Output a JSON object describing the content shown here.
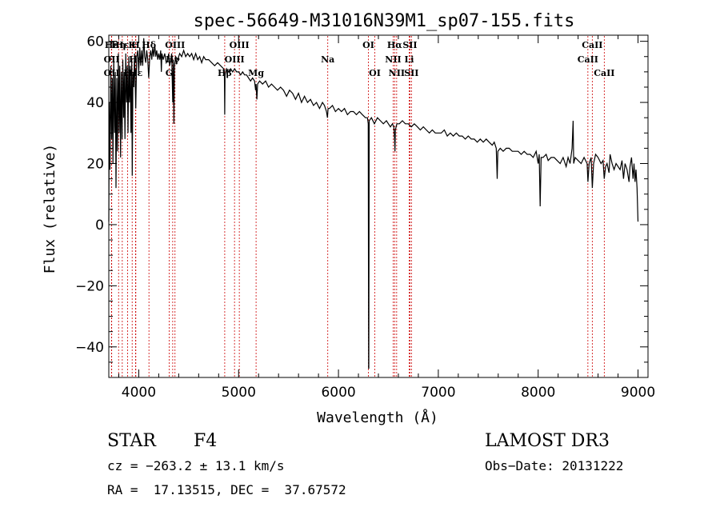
{
  "chart_data": {
    "type": "line",
    "title": "spec-56649-M31016N39M1_sp07-155.fits",
    "xlabel": "Wavelength (Å)",
    "ylabel": "Flux (relative)",
    "xlim": [
      3700,
      9100
    ],
    "ylim": [
      -50,
      62
    ],
    "xticks": [
      4000,
      5000,
      6000,
      7000,
      8000,
      9000
    ],
    "yticks": [
      -40,
      -20,
      0,
      20,
      40,
      60
    ],
    "x_minor_step": 200,
    "y_minor_step": 5,
    "grid": false,
    "line_color": "#000000",
    "marker_color": "#cc0000",
    "series": [
      {
        "name": "flux",
        "points": [
          [
            3700,
            1
          ],
          [
            3705,
            40
          ],
          [
            3712,
            18
          ],
          [
            3720,
            52
          ],
          [
            3728,
            28
          ],
          [
            3735,
            48
          ],
          [
            3742,
            20
          ],
          [
            3750,
            55
          ],
          [
            3758,
            30
          ],
          [
            3765,
            50
          ],
          [
            3772,
            12
          ],
          [
            3780,
            48
          ],
          [
            3788,
            24
          ],
          [
            3795,
            56
          ],
          [
            3803,
            30
          ],
          [
            3810,
            52
          ],
          [
            3818,
            22
          ],
          [
            3825,
            50
          ],
          [
            3833,
            28
          ],
          [
            3840,
            54
          ],
          [
            3848,
            35
          ],
          [
            3855,
            50
          ],
          [
            3862,
            28
          ],
          [
            3870,
            56
          ],
          [
            3878,
            40
          ],
          [
            3885,
            52
          ],
          [
            3892,
            30
          ],
          [
            3900,
            55
          ],
          [
            3907,
            40
          ],
          [
            3915,
            52
          ],
          [
            3922,
            30
          ],
          [
            3930,
            54
          ],
          [
            3935,
            16
          ],
          [
            3942,
            50
          ],
          [
            3950,
            45
          ],
          [
            3958,
            56
          ],
          [
            3966,
            44
          ],
          [
            3970,
            38
          ],
          [
            3980,
            55
          ],
          [
            3990,
            57
          ],
          [
            4000,
            50
          ],
          [
            4010,
            58
          ],
          [
            4020,
            52
          ],
          [
            4030,
            57
          ],
          [
            4040,
            52
          ],
          [
            4050,
            61
          ],
          [
            4060,
            55
          ],
          [
            4070,
            53
          ],
          [
            4080,
            57
          ],
          [
            4090,
            54
          ],
          [
            4100,
            48
          ],
          [
            4110,
            55
          ],
          [
            4120,
            57
          ],
          [
            4130,
            54
          ],
          [
            4140,
            58
          ],
          [
            4150,
            55
          ],
          [
            4160,
            59
          ],
          [
            4170,
            55
          ],
          [
            4180,
            57
          ],
          [
            4190,
            54
          ],
          [
            4200,
            56
          ],
          [
            4210,
            54
          ],
          [
            4220,
            57
          ],
          [
            4226,
            50
          ],
          [
            4232,
            56
          ],
          [
            4245,
            54
          ],
          [
            4260,
            56
          ],
          [
            4275,
            53
          ],
          [
            4290,
            54
          ],
          [
            4300,
            56
          ],
          [
            4310,
            52
          ],
          [
            4320,
            54
          ],
          [
            4330,
            56
          ],
          [
            4340,
            40
          ],
          [
            4346,
            54
          ],
          [
            4352,
            33
          ],
          [
            4358,
            52
          ],
          [
            4370,
            55
          ],
          [
            4390,
            54
          ],
          [
            4410,
            56
          ],
          [
            4430,
            55
          ],
          [
            4450,
            57
          ],
          [
            4470,
            55
          ],
          [
            4490,
            56
          ],
          [
            4510,
            55
          ],
          [
            4530,
            56
          ],
          [
            4550,
            54
          ],
          [
            4570,
            56
          ],
          [
            4590,
            54
          ],
          [
            4610,
            55
          ],
          [
            4630,
            53
          ],
          [
            4650,
            55
          ],
          [
            4670,
            54
          ],
          [
            4700,
            54
          ],
          [
            4730,
            53
          ],
          [
            4760,
            52
          ],
          [
            4790,
            53
          ],
          [
            4820,
            52
          ],
          [
            4850,
            51
          ],
          [
            4858,
            49
          ],
          [
            4861,
            36
          ],
          [
            4864,
            49
          ],
          [
            4880,
            51
          ],
          [
            4900,
            50
          ],
          [
            4920,
            51
          ],
          [
            4940,
            50
          ],
          [
            4960,
            51
          ],
          [
            4980,
            50
          ],
          [
            5000,
            50
          ],
          [
            5020,
            49
          ],
          [
            5040,
            50
          ],
          [
            5060,
            49
          ],
          [
            5080,
            49
          ],
          [
            5100,
            48
          ],
          [
            5120,
            47
          ],
          [
            5140,
            48
          ],
          [
            5160,
            47
          ],
          [
            5170,
            44
          ],
          [
            5175,
            46
          ],
          [
            5183,
            41
          ],
          [
            5190,
            46
          ],
          [
            5210,
            47
          ],
          [
            5240,
            46
          ],
          [
            5270,
            47
          ],
          [
            5300,
            45
          ],
          [
            5330,
            46
          ],
          [
            5360,
            45
          ],
          [
            5390,
            44
          ],
          [
            5420,
            45
          ],
          [
            5450,
            44
          ],
          [
            5480,
            42
          ],
          [
            5510,
            44
          ],
          [
            5540,
            43
          ],
          [
            5570,
            41
          ],
          [
            5600,
            43
          ],
          [
            5630,
            40
          ],
          [
            5660,
            42
          ],
          [
            5690,
            40
          ],
          [
            5720,
            41
          ],
          [
            5750,
            39
          ],
          [
            5780,
            40
          ],
          [
            5810,
            38
          ],
          [
            5840,
            40
          ],
          [
            5860,
            39
          ],
          [
            5880,
            37
          ],
          [
            5890,
            35
          ],
          [
            5896,
            38
          ],
          [
            5910,
            38
          ],
          [
            5940,
            39
          ],
          [
            5970,
            37
          ],
          [
            6000,
            38
          ],
          [
            6030,
            37
          ],
          [
            6060,
            38
          ],
          [
            6090,
            36
          ],
          [
            6120,
            37
          ],
          [
            6150,
            37
          ],
          [
            6180,
            36
          ],
          [
            6210,
            37
          ],
          [
            6240,
            36
          ],
          [
            6270,
            35
          ],
          [
            6290,
            35
          ],
          [
            6298,
            33
          ],
          [
            6300,
            1
          ],
          [
            6302,
            -47
          ],
          [
            6304,
            -47
          ],
          [
            6306,
            2
          ],
          [
            6308,
            34
          ],
          [
            6330,
            35
          ],
          [
            6360,
            33
          ],
          [
            6390,
            35
          ],
          [
            6420,
            34
          ],
          [
            6450,
            33
          ],
          [
            6480,
            34
          ],
          [
            6500,
            33
          ],
          [
            6520,
            32
          ],
          [
            6540,
            33
          ],
          [
            6555,
            32
          ],
          [
            6562,
            28
          ],
          [
            6566,
            24
          ],
          [
            6570,
            31
          ],
          [
            6585,
            33
          ],
          [
            6610,
            33
          ],
          [
            6640,
            34
          ],
          [
            6670,
            33
          ],
          [
            6700,
            33
          ],
          [
            6730,
            32
          ],
          [
            6760,
            33
          ],
          [
            6790,
            32
          ],
          [
            6820,
            31
          ],
          [
            6850,
            32
          ],
          [
            6880,
            31
          ],
          [
            6910,
            30
          ],
          [
            6940,
            31
          ],
          [
            6970,
            30
          ],
          [
            7000,
            30
          ],
          [
            7030,
            30
          ],
          [
            7060,
            31
          ],
          [
            7090,
            29
          ],
          [
            7120,
            30
          ],
          [
            7150,
            29
          ],
          [
            7180,
            30
          ],
          [
            7210,
            29
          ],
          [
            7240,
            29
          ],
          [
            7270,
            28
          ],
          [
            7300,
            29
          ],
          [
            7330,
            28
          ],
          [
            7360,
            28
          ],
          [
            7390,
            27
          ],
          [
            7420,
            28
          ],
          [
            7450,
            27
          ],
          [
            7480,
            28
          ],
          [
            7510,
            27
          ],
          [
            7540,
            26
          ],
          [
            7560,
            27
          ],
          [
            7580,
            25
          ],
          [
            7590,
            15
          ],
          [
            7596,
            24
          ],
          [
            7620,
            25
          ],
          [
            7650,
            24
          ],
          [
            7680,
            25
          ],
          [
            7710,
            25
          ],
          [
            7740,
            24
          ],
          [
            7770,
            24
          ],
          [
            7800,
            24
          ],
          [
            7830,
            23
          ],
          [
            7860,
            24
          ],
          [
            7890,
            23
          ],
          [
            7920,
            23
          ],
          [
            7950,
            22
          ],
          [
            7980,
            24
          ],
          [
            8000,
            20
          ],
          [
            8010,
            23
          ],
          [
            8020,
            6
          ],
          [
            8030,
            22
          ],
          [
            8050,
            22
          ],
          [
            8080,
            23
          ],
          [
            8100,
            21
          ],
          [
            8130,
            22
          ],
          [
            8160,
            22
          ],
          [
            8190,
            21
          ],
          [
            8220,
            20
          ],
          [
            8250,
            22
          ],
          [
            8280,
            19
          ],
          [
            8300,
            22
          ],
          [
            8320,
            20
          ],
          [
            8340,
            25
          ],
          [
            8350,
            34
          ],
          [
            8356,
            20
          ],
          [
            8370,
            22
          ],
          [
            8400,
            21
          ],
          [
            8430,
            20
          ],
          [
            8460,
            22
          ],
          [
            8490,
            20
          ],
          [
            8498,
            14
          ],
          [
            8510,
            20
          ],
          [
            8530,
            22
          ],
          [
            8542,
            12
          ],
          [
            8555,
            20
          ],
          [
            8575,
            23
          ],
          [
            8600,
            22
          ],
          [
            8630,
            20
          ],
          [
            8650,
            21
          ],
          [
            8662,
            15
          ],
          [
            8675,
            19
          ],
          [
            8690,
            20
          ],
          [
            8710,
            17
          ],
          [
            8720,
            23
          ],
          [
            8740,
            20
          ],
          [
            8760,
            18
          ],
          [
            8780,
            20
          ],
          [
            8800,
            19
          ],
          [
            8820,
            18
          ],
          [
            8840,
            21
          ],
          [
            8855,
            15
          ],
          [
            8870,
            20
          ],
          [
            8890,
            18
          ],
          [
            8910,
            14
          ],
          [
            8920,
            19
          ],
          [
            8935,
            22
          ],
          [
            8950,
            15
          ],
          [
            8960,
            20
          ],
          [
            8970,
            14
          ],
          [
            8980,
            18
          ],
          [
            8990,
            12
          ],
          [
            9000,
            1
          ]
        ]
      }
    ],
    "line_markers": [
      {
        "label": "Hε",
        "x": 3727,
        "row": 1
      },
      {
        "label": "OII",
        "x": 3729,
        "row": 2
      },
      {
        "label": "OII",
        "x": 3729,
        "row": 3
      },
      {
        "label": "Hη",
        "x": 3798,
        "row": 1
      },
      {
        "label": "Hε",
        "x": 3835,
        "row": 1
      },
      {
        "label": "H",
        "x": 3889,
        "row": 3
      },
      {
        "label": "Hε",
        "x": 3970,
        "row": 2
      },
      {
        "label": "Hε",
        "x": 3970,
        "row": 3
      },
      {
        "label": "K",
        "x": 3934,
        "row": 1
      },
      {
        "label": "H",
        "x": 3969,
        "row": 1
      },
      {
        "label": "Hδ",
        "x": 4102,
        "row": 1
      },
      {
        "label": "G",
        "x": 4305,
        "row": 3
      },
      {
        "label": "Hγ",
        "x": 4340,
        "row": 2
      },
      {
        "label": "OIII",
        "x": 4363,
        "row": 1
      },
      {
        "label": "Hβ",
        "x": 4861,
        "row": 3
      },
      {
        "label": "OIII",
        "x": 4959,
        "row": 2
      },
      {
        "label": "OIII",
        "x": 5007,
        "row": 1
      },
      {
        "label": "Mg",
        "x": 5175,
        "row": 3
      },
      {
        "label": "Na",
        "x": 5893,
        "row": 2
      },
      {
        "label": "OI",
        "x": 6300,
        "row": 1
      },
      {
        "label": "OI",
        "x": 6364,
        "row": 3
      },
      {
        "label": "NII",
        "x": 6548,
        "row": 2
      },
      {
        "label": "Hα",
        "x": 6563,
        "row": 1
      },
      {
        "label": "NII",
        "x": 6583,
        "row": 3
      },
      {
        "label": "SII",
        "x": 6716,
        "row": 1
      },
      {
        "label": "SII",
        "x": 6731,
        "row": 3
      },
      {
        "label": "Li",
        "x": 6708,
        "row": 2
      },
      {
        "label": "CaII",
        "x": 8498,
        "row": 2
      },
      {
        "label": "CaII",
        "x": 8542,
        "row": 1
      },
      {
        "label": "CaII",
        "x": 8662,
        "row": 3
      }
    ]
  },
  "info": {
    "object_class": "STAR",
    "subclass": "F4",
    "survey": "LAMOST DR3",
    "velocity": "cz = −263.2 ± 13.1 km/s",
    "obs_date": "Obs−Date: 20131222",
    "coordinates": "RA =  17.13515, DEC =  37.67572"
  }
}
